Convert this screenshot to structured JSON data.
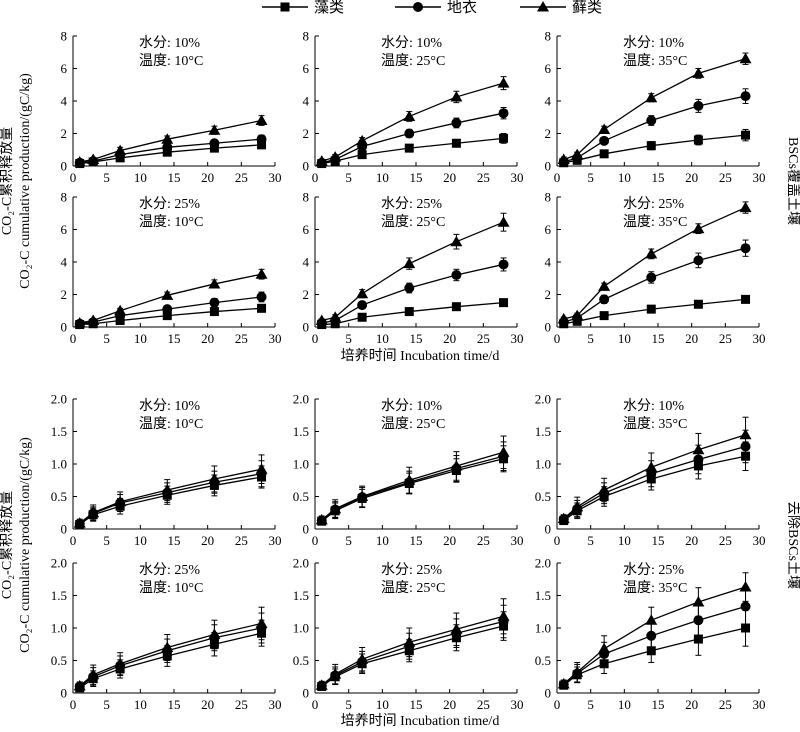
{
  "legend": [
    {
      "name": "藻类",
      "marker": "square"
    },
    {
      "name": "地衣",
      "marker": "circle"
    },
    {
      "name": "藓类",
      "marker": "triangle"
    }
  ],
  "groups": [
    {
      "ylabel_top": "CO₂-C累积释放量",
      "ylabel_bottom": "CO₂-C cumulative production/(gC/kg)",
      "side_label": "BSCs覆盖土壤",
      "xlabel": "培养时间 Incubation time/d"
    },
    {
      "ylabel_top": "CO₂-C累积释放量",
      "ylabel_bottom": "CO₂-C cumulative production/(gC/kg)",
      "side_label": "去除BSCs土壤",
      "xlabel": "培养时间 Incubation time/d"
    }
  ],
  "chart_data": [
    {
      "type": "line",
      "group": 0,
      "moisture": "水分: 10%",
      "temperature": "温度: 10°C",
      "x": [
        1,
        3,
        7,
        14,
        21,
        28
      ],
      "xlim": [
        0,
        30
      ],
      "xticks": [
        "0",
        "5",
        "10",
        "15",
        "20",
        "25",
        "30"
      ],
      "ylim": [
        0,
        8
      ],
      "yticks": [
        "0",
        "2",
        "4",
        "6",
        "8"
      ],
      "series": [
        {
          "name": "藻类",
          "marker": "square",
          "values": [
            0.15,
            0.25,
            0.5,
            0.85,
            1.1,
            1.3
          ],
          "errors": [
            0.1,
            0.1,
            0.15,
            0.15,
            0.2,
            0.2
          ]
        },
        {
          "name": "地衣",
          "marker": "circle",
          "values": [
            0.2,
            0.3,
            0.7,
            1.15,
            1.4,
            1.65
          ],
          "errors": [
            0.1,
            0.1,
            0.15,
            0.2,
            0.2,
            0.25
          ]
        },
        {
          "name": "藓类",
          "marker": "triangle",
          "values": [
            0.25,
            0.4,
            0.95,
            1.65,
            2.2,
            2.8
          ],
          "errors": [
            0.1,
            0.1,
            0.2,
            0.2,
            0.25,
            0.3
          ]
        }
      ]
    },
    {
      "type": "line",
      "group": 0,
      "moisture": "水分: 10%",
      "temperature": "温度: 25°C",
      "x": [
        1,
        3,
        7,
        14,
        21,
        28
      ],
      "xlim": [
        0,
        30
      ],
      "xticks": [
        "0",
        "5",
        "10",
        "15",
        "20",
        "25",
        "30"
      ],
      "ylim": [
        0,
        8
      ],
      "yticks": [
        "0",
        "2",
        "4",
        "6",
        "8"
      ],
      "series": [
        {
          "name": "藻类",
          "marker": "square",
          "values": [
            0.15,
            0.3,
            0.7,
            1.1,
            1.4,
            1.7
          ],
          "errors": [
            0.1,
            0.1,
            0.15,
            0.15,
            0.2,
            0.3
          ]
        },
        {
          "name": "地衣",
          "marker": "circle",
          "values": [
            0.2,
            0.4,
            1.2,
            2.0,
            2.65,
            3.25
          ],
          "errors": [
            0.1,
            0.1,
            0.2,
            0.25,
            0.3,
            0.35
          ]
        },
        {
          "name": "藓类",
          "marker": "triangle",
          "values": [
            0.3,
            0.55,
            1.55,
            3.05,
            4.25,
            5.1
          ],
          "errors": [
            0.1,
            0.15,
            0.2,
            0.3,
            0.35,
            0.4
          ]
        }
      ]
    },
    {
      "type": "line",
      "group": 0,
      "moisture": "水分: 10%",
      "temperature": "温度: 35°C",
      "x": [
        1,
        3,
        7,
        14,
        21,
        28
      ],
      "xlim": [
        0,
        30
      ],
      "xticks": [
        "0",
        "5",
        "10",
        "15",
        "20",
        "25",
        "30"
      ],
      "ylim": [
        0,
        8
      ],
      "yticks": [
        "0",
        "2",
        "4",
        "6",
        "8"
      ],
      "series": [
        {
          "name": "藻类",
          "marker": "square",
          "values": [
            0.2,
            0.35,
            0.75,
            1.25,
            1.6,
            1.9
          ],
          "errors": [
            0.1,
            0.1,
            0.15,
            0.25,
            0.3,
            0.35
          ]
        },
        {
          "name": "地衣",
          "marker": "circle",
          "values": [
            0.25,
            0.5,
            1.55,
            2.8,
            3.7,
            4.3
          ],
          "errors": [
            0.1,
            0.15,
            0.2,
            0.3,
            0.4,
            0.45
          ]
        },
        {
          "name": "藓类",
          "marker": "triangle",
          "values": [
            0.4,
            0.7,
            2.25,
            4.2,
            5.7,
            6.6
          ],
          "errors": [
            0.15,
            0.15,
            0.2,
            0.25,
            0.3,
            0.35
          ]
        }
      ]
    },
    {
      "type": "line",
      "group": 0,
      "moisture": "水分: 25%",
      "temperature": "温度: 10°C",
      "x": [
        1,
        3,
        7,
        14,
        21,
        28
      ],
      "xlim": [
        0,
        30
      ],
      "xticks": [
        "0",
        "5",
        "10",
        "15",
        "20",
        "25",
        "30"
      ],
      "ylim": [
        0,
        8
      ],
      "yticks": [
        "0",
        "2",
        "4",
        "6",
        "8"
      ],
      "series": [
        {
          "name": "藻类",
          "marker": "square",
          "values": [
            0.15,
            0.2,
            0.4,
            0.7,
            0.95,
            1.15
          ],
          "errors": [
            0.05,
            0.05,
            0.1,
            0.15,
            0.15,
            0.15
          ]
        },
        {
          "name": "地衣",
          "marker": "circle",
          "values": [
            0.2,
            0.3,
            0.7,
            1.1,
            1.5,
            1.85
          ],
          "errors": [
            0.1,
            0.1,
            0.15,
            0.2,
            0.25,
            0.3
          ]
        },
        {
          "name": "藓类",
          "marker": "triangle",
          "values": [
            0.25,
            0.4,
            1.0,
            1.95,
            2.65,
            3.25
          ],
          "errors": [
            0.1,
            0.1,
            0.15,
            0.2,
            0.25,
            0.3
          ]
        }
      ]
    },
    {
      "type": "line",
      "group": 0,
      "moisture": "水分: 25%",
      "temperature": "温度: 25°C",
      "x": [
        1,
        3,
        7,
        14,
        21,
        28
      ],
      "xlim": [
        0,
        30
      ],
      "xticks": [
        "0",
        "5",
        "10",
        "15",
        "20",
        "25",
        "30"
      ],
      "ylim": [
        0,
        8
      ],
      "yticks": [
        "0",
        "2",
        "4",
        "6",
        "8"
      ],
      "series": [
        {
          "name": "藻类",
          "marker": "square",
          "values": [
            0.15,
            0.2,
            0.6,
            0.95,
            1.25,
            1.5
          ],
          "errors": [
            0.05,
            0.05,
            0.1,
            0.1,
            0.15,
            0.15
          ]
        },
        {
          "name": "地衣",
          "marker": "circle",
          "values": [
            0.25,
            0.4,
            1.35,
            2.4,
            3.2,
            3.85
          ],
          "errors": [
            0.1,
            0.1,
            0.2,
            0.3,
            0.35,
            0.4
          ]
        },
        {
          "name": "藓类",
          "marker": "triangle",
          "values": [
            0.4,
            0.6,
            2.05,
            3.9,
            5.25,
            6.45
          ],
          "errors": [
            0.1,
            0.15,
            0.25,
            0.35,
            0.45,
            0.55
          ]
        }
      ]
    },
    {
      "type": "line",
      "group": 0,
      "moisture": "水分: 25%",
      "temperature": "温度: 35°C",
      "x": [
        1,
        3,
        7,
        14,
        21,
        28
      ],
      "xlim": [
        0,
        30
      ],
      "xticks": [
        "0",
        "5",
        "10",
        "15",
        "20",
        "25",
        "30"
      ],
      "ylim": [
        0,
        8
      ],
      "yticks": [
        "0",
        "2",
        "4",
        "6",
        "8"
      ],
      "series": [
        {
          "name": "藻类",
          "marker": "square",
          "values": [
            0.2,
            0.35,
            0.7,
            1.1,
            1.4,
            1.7
          ],
          "errors": [
            0.1,
            0.1,
            0.1,
            0.15,
            0.2,
            0.2
          ]
        },
        {
          "name": "地衣",
          "marker": "circle",
          "values": [
            0.3,
            0.55,
            1.7,
            3.05,
            4.1,
            4.85
          ],
          "errors": [
            0.1,
            0.15,
            0.25,
            0.35,
            0.45,
            0.5
          ]
        },
        {
          "name": "藓类",
          "marker": "triangle",
          "values": [
            0.5,
            0.7,
            2.5,
            4.5,
            6.05,
            7.35
          ],
          "errors": [
            0.1,
            0.15,
            0.2,
            0.3,
            0.3,
            0.35
          ]
        }
      ]
    },
    {
      "type": "line",
      "group": 1,
      "moisture": "水分: 10%",
      "temperature": "温度: 10°C",
      "x": [
        1,
        3,
        7,
        14,
        21,
        28
      ],
      "xlim": [
        0,
        30
      ],
      "xticks": [
        "0",
        "5",
        "10",
        "15",
        "20",
        "25",
        "30"
      ],
      "ylim": [
        0,
        2
      ],
      "yticks": [
        "0",
        "0.5",
        "1.0",
        "1.5",
        "2.0"
      ],
      "series": [
        {
          "name": "藻类",
          "marker": "square",
          "values": [
            0.07,
            0.22,
            0.35,
            0.52,
            0.67,
            0.8
          ],
          "errors": [
            0.05,
            0.1,
            0.12,
            0.14,
            0.16,
            0.17
          ]
        },
        {
          "name": "地衣",
          "marker": "circle",
          "values": [
            0.08,
            0.24,
            0.4,
            0.56,
            0.72,
            0.85
          ],
          "errors": [
            0.05,
            0.1,
            0.13,
            0.15,
            0.17,
            0.2
          ]
        },
        {
          "name": "藓类",
          "marker": "triangle",
          "values": [
            0.09,
            0.25,
            0.42,
            0.6,
            0.77,
            0.92
          ],
          "errors": [
            0.06,
            0.12,
            0.15,
            0.16,
            0.2,
            0.22
          ]
        }
      ]
    },
    {
      "type": "line",
      "group": 1,
      "moisture": "水分: 10%",
      "temperature": "温度: 25°C",
      "x": [
        1,
        3,
        7,
        14,
        21,
        28
      ],
      "xlim": [
        0,
        30
      ],
      "xticks": [
        "0",
        "5",
        "10",
        "15",
        "20",
        "25",
        "30"
      ],
      "ylim": [
        0,
        2
      ],
      "yticks": [
        "0",
        "0.5",
        "1.0",
        "1.5",
        "2.0"
      ],
      "series": [
        {
          "name": "藻类",
          "marker": "square",
          "values": [
            0.12,
            0.28,
            0.47,
            0.7,
            0.9,
            1.08
          ],
          "errors": [
            0.05,
            0.12,
            0.14,
            0.16,
            0.18,
            0.2
          ]
        },
        {
          "name": "地衣",
          "marker": "circle",
          "values": [
            0.13,
            0.3,
            0.49,
            0.72,
            0.93,
            1.12
          ],
          "errors": [
            0.05,
            0.12,
            0.15,
            0.17,
            0.2,
            0.22
          ]
        },
        {
          "name": "藓类",
          "marker": "triangle",
          "values": [
            0.14,
            0.31,
            0.5,
            0.75,
            0.97,
            1.18
          ],
          "errors": [
            0.06,
            0.14,
            0.16,
            0.2,
            0.22,
            0.25
          ]
        }
      ]
    },
    {
      "type": "line",
      "group": 1,
      "moisture": "水分: 10%",
      "temperature": "温度: 35°C",
      "x": [
        1,
        3,
        7,
        14,
        21,
        28
      ],
      "xlim": [
        0,
        30
      ],
      "xticks": [
        "0",
        "5",
        "10",
        "15",
        "20",
        "25",
        "30"
      ],
      "ylim": [
        0,
        2
      ],
      "yticks": [
        "0",
        "0.5",
        "1.0",
        "1.5",
        "2.0"
      ],
      "series": [
        {
          "name": "藻类",
          "marker": "square",
          "values": [
            0.13,
            0.28,
            0.5,
            0.77,
            0.97,
            1.12
          ],
          "errors": [
            0.05,
            0.12,
            0.15,
            0.17,
            0.2,
            0.22
          ]
        },
        {
          "name": "地衣",
          "marker": "circle",
          "values": [
            0.15,
            0.31,
            0.55,
            0.85,
            1.07,
            1.27
          ],
          "errors": [
            0.06,
            0.13,
            0.16,
            0.2,
            0.22,
            0.25
          ]
        },
        {
          "name": "藓类",
          "marker": "triangle",
          "values": [
            0.16,
            0.34,
            0.6,
            0.95,
            1.22,
            1.45
          ],
          "errors": [
            0.06,
            0.15,
            0.18,
            0.22,
            0.25,
            0.27
          ]
        }
      ]
    },
    {
      "type": "line",
      "group": 1,
      "moisture": "水分: 25%",
      "temperature": "温度: 10°C",
      "x": [
        1,
        3,
        7,
        14,
        21,
        28
      ],
      "xlim": [
        0,
        30
      ],
      "xticks": [
        "0",
        "5",
        "10",
        "15",
        "20",
        "25",
        "30"
      ],
      "ylim": [
        0,
        2
      ],
      "yticks": [
        "0",
        "0.5",
        "1.0",
        "1.5",
        "2.0"
      ],
      "series": [
        {
          "name": "藻类",
          "marker": "square",
          "values": [
            0.08,
            0.22,
            0.37,
            0.57,
            0.75,
            0.92
          ],
          "errors": [
            0.05,
            0.12,
            0.14,
            0.16,
            0.18,
            0.2
          ]
        },
        {
          "name": "地衣",
          "marker": "circle",
          "values": [
            0.1,
            0.25,
            0.42,
            0.65,
            0.85,
            1.0
          ],
          "errors": [
            0.05,
            0.14,
            0.15,
            0.18,
            0.2,
            0.23
          ]
        },
        {
          "name": "藓类",
          "marker": "triangle",
          "values": [
            0.11,
            0.28,
            0.45,
            0.7,
            0.9,
            1.07
          ],
          "errors": [
            0.06,
            0.15,
            0.17,
            0.2,
            0.22,
            0.25
          ]
        }
      ]
    },
    {
      "type": "line",
      "group": 1,
      "moisture": "水分: 25%",
      "temperature": "温度: 25°C",
      "x": [
        1,
        3,
        7,
        14,
        21,
        28
      ],
      "xlim": [
        0,
        30
      ],
      "xticks": [
        "0",
        "5",
        "10",
        "15",
        "20",
        "25",
        "30"
      ],
      "ylim": [
        0,
        2
      ],
      "yticks": [
        "0",
        "0.5",
        "1.0",
        "1.5",
        "2.0"
      ],
      "series": [
        {
          "name": "藻类",
          "marker": "square",
          "values": [
            0.1,
            0.25,
            0.45,
            0.65,
            0.85,
            1.03
          ],
          "errors": [
            0.05,
            0.12,
            0.15,
            0.17,
            0.2,
            0.22
          ]
        },
        {
          "name": "地衣",
          "marker": "circle",
          "values": [
            0.11,
            0.27,
            0.48,
            0.72,
            0.92,
            1.1
          ],
          "errors": [
            0.05,
            0.13,
            0.16,
            0.2,
            0.22,
            0.25
          ]
        },
        {
          "name": "藓类",
          "marker": "triangle",
          "values": [
            0.12,
            0.29,
            0.52,
            0.78,
            0.98,
            1.18
          ],
          "errors": [
            0.06,
            0.15,
            0.18,
            0.22,
            0.25,
            0.27
          ]
        }
      ]
    },
    {
      "type": "line",
      "group": 1,
      "moisture": "水分: 25%",
      "temperature": "温度: 35°C",
      "x": [
        1,
        3,
        7,
        14,
        21,
        28
      ],
      "xlim": [
        0,
        30
      ],
      "xticks": [
        "0",
        "5",
        "10",
        "15",
        "20",
        "25",
        "30"
      ],
      "ylim": [
        0,
        2
      ],
      "yticks": [
        "0",
        "0.5",
        "1.0",
        "1.5",
        "2.0"
      ],
      "series": [
        {
          "name": "藻类",
          "marker": "square",
          "values": [
            0.12,
            0.28,
            0.45,
            0.65,
            0.83,
            1.0
          ],
          "errors": [
            0.05,
            0.12,
            0.15,
            0.18,
            0.25,
            0.28
          ]
        },
        {
          "name": "地衣",
          "marker": "circle",
          "values": [
            0.13,
            0.3,
            0.6,
            0.88,
            1.12,
            1.33
          ],
          "errors": [
            0.05,
            0.14,
            0.18,
            0.22,
            0.25,
            0.28
          ]
        },
        {
          "name": "藓类",
          "marker": "triangle",
          "values": [
            0.14,
            0.32,
            0.68,
            1.12,
            1.4,
            1.63
          ],
          "errors": [
            0.06,
            0.15,
            0.2,
            0.2,
            0.22,
            0.22
          ]
        }
      ]
    }
  ]
}
